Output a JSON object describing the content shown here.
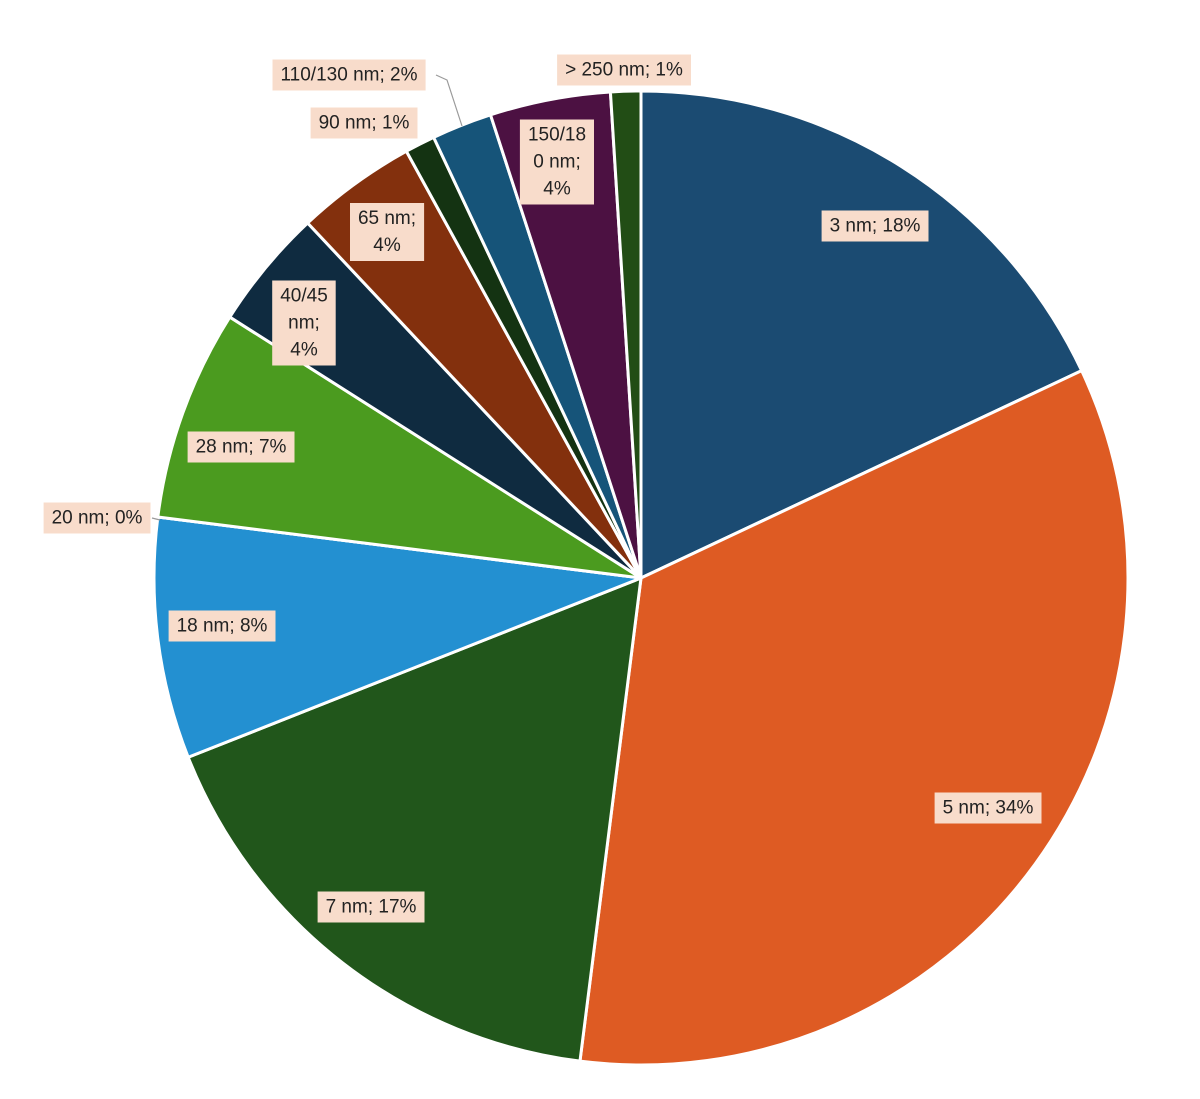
{
  "chart_data": {
    "type": "pie",
    "title": "",
    "start_angle_deg": 0,
    "direction": "clockwise",
    "label_background": "#f8dccb",
    "slices": [
      {
        "key": "3nm",
        "label_lines": [
          "3 nm; 18%"
        ],
        "value": 18,
        "color": "#1b4b72"
      },
      {
        "key": "5nm",
        "label_lines": [
          "5 nm; 34%"
        ],
        "value": 34,
        "color": "#de5b23"
      },
      {
        "key": "7nm",
        "label_lines": [
          "7 nm; 17%"
        ],
        "value": 17,
        "color": "#21561b"
      },
      {
        "key": "18nm",
        "label_lines": [
          "18 nm; 8%"
        ],
        "value": 8,
        "color": "#2390d1"
      },
      {
        "key": "20nm",
        "label_lines": [
          "20 nm; 0%"
        ],
        "value": 0,
        "color": "#2f7fc0"
      },
      {
        "key": "28nm",
        "label_lines": [
          "28 nm; 7%"
        ],
        "value": 7,
        "color": "#4b9b1f"
      },
      {
        "key": "40-45nm",
        "label_lines": [
          "40/45",
          "nm;",
          "4%"
        ],
        "value": 4,
        "color": "#0f2b40"
      },
      {
        "key": "65nm",
        "label_lines": [
          "65 nm;",
          "4%"
        ],
        "value": 4,
        "color": "#83300d"
      },
      {
        "key": "90nm",
        "label_lines": [
          "90 nm; 1%"
        ],
        "value": 1,
        "color": "#143312"
      },
      {
        "key": "110-130nm",
        "label_lines": [
          "110/130 nm; 2%"
        ],
        "value": 2,
        "color": "#165479"
      },
      {
        "key": "150-180nm",
        "label_lines": [
          "150/18",
          "0 nm;",
          "4%"
        ],
        "value": 4,
        "color": "#4c1142"
      },
      {
        "key": "250nm",
        "label_lines": [
          "> 250 nm; 1%"
        ],
        "value": 1,
        "color": "#224d15"
      }
    ]
  }
}
